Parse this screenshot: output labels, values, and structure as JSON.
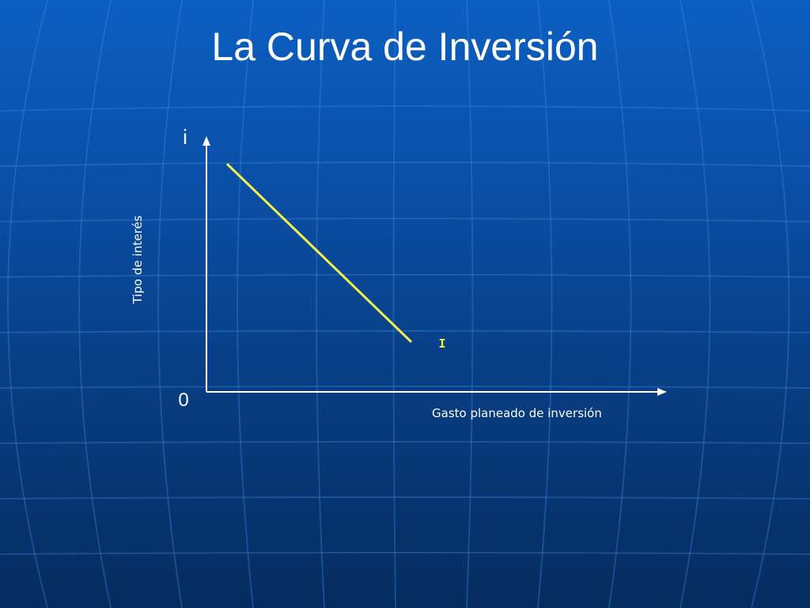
{
  "slide": {
    "title": "La Curva de Inversión"
  },
  "diagram": {
    "y_axis_symbol": "i",
    "y_axis_label": "Tipo de interés",
    "origin_label": "0",
    "x_axis_label": "Gasto planeado de inversión",
    "curve_label": "I",
    "colors": {
      "background_top": "#0b5fc2",
      "background_bottom": "#052c5f",
      "axes": "#ffffff",
      "curve": "#f2f24a",
      "curve_label": "#f2f24a"
    }
  }
}
